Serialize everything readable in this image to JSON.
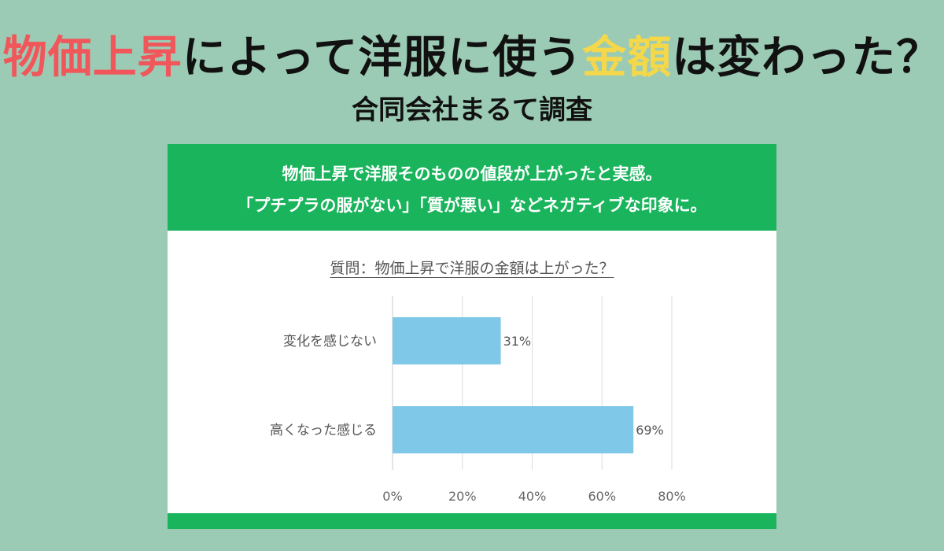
{
  "header": {
    "title_part1": "物価上昇",
    "title_part2": "によって洋服に使う",
    "title_part3": "金額",
    "title_part4": "は変わった？",
    "subtitle": "合同会社まるて調査"
  },
  "banner": {
    "line1": "物価上昇で洋服そのものの値段が上がったと実感。",
    "line2": "「プチプラの服がない」「質が悪い」などネガティブな印象に。"
  },
  "colors": {
    "background": "#9bcbb4",
    "banner_green": "#19b45c",
    "title_red": "#f0565a",
    "title_yellow": "#f5d74a",
    "bar_blue": "#7fc8e8"
  },
  "chart_data": {
    "type": "bar",
    "orientation": "horizontal",
    "title": "質問：物価上昇で洋服の金額は上がった？",
    "categories": [
      "変化を感じない",
      "高くなった感じる"
    ],
    "values": [
      31,
      69
    ],
    "value_labels": [
      "31%",
      "69%"
    ],
    "xlim": [
      0,
      80
    ],
    "xticks": [
      0,
      20,
      40,
      60,
      80
    ],
    "xtick_labels": [
      "0%",
      "20%",
      "40%",
      "60%",
      "80%"
    ],
    "grid": true
  }
}
